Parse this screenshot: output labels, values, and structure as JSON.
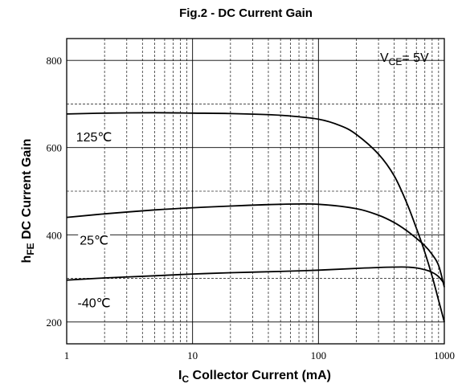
{
  "chart_data": {
    "type": "line",
    "title": "Fig.2 - DC Current Gain",
    "xlabel_main": "I",
    "xlabel_sub": "C",
    "xlabel_rest": " Collector Current (mA)",
    "ylabel_main": "h",
    "ylabel_sub": "FE",
    "ylabel_rest": " DC Current Gain",
    "xscale": "log",
    "xlim": [
      1,
      1000
    ],
    "ylim": [
      150,
      850
    ],
    "x_ticks": [
      "1",
      "10",
      "100",
      "1000"
    ],
    "y_ticks": [
      "200",
      "400",
      "600",
      "800"
    ],
    "grid": true,
    "annotation": {
      "main": "V",
      "sub": "CE",
      "rest": "= 5V"
    },
    "series": [
      {
        "name": "125℃",
        "x": [
          1,
          2,
          5,
          10,
          20,
          50,
          100,
          150,
          200,
          300,
          400,
          500,
          600,
          700,
          800,
          900,
          1000
        ],
        "y": [
          677,
          679,
          680,
          679,
          678,
          674,
          665,
          650,
          630,
          585,
          535,
          475,
          415,
          360,
          305,
          250,
          200
        ]
      },
      {
        "name": "25℃",
        "x": [
          1,
          2,
          5,
          10,
          20,
          50,
          100,
          200,
          300,
          400,
          500,
          600,
          700,
          800,
          900,
          1000
        ],
        "y": [
          440,
          448,
          457,
          462,
          466,
          470,
          470,
          460,
          445,
          428,
          410,
          392,
          375,
          355,
          330,
          280
        ]
      },
      {
        "name": "-40℃",
        "x": [
          1,
          2,
          5,
          10,
          20,
          50,
          100,
          200,
          300,
          400,
          500,
          600,
          700,
          800,
          900,
          1000
        ],
        "y": [
          296,
          301,
          306,
          310,
          313,
          316,
          319,
          323,
          325,
          326,
          326,
          324,
          320,
          314,
          304,
          288
        ]
      }
    ]
  }
}
